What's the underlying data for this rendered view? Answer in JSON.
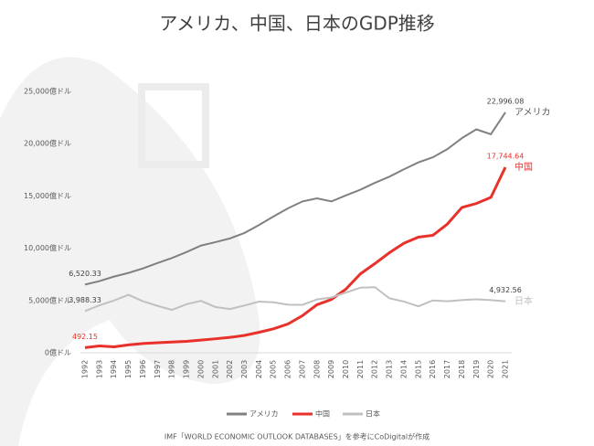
{
  "chart_data": {
    "type": "line",
    "title": "アメリカ、中国、日本のGDP推移",
    "categories": [
      "1992",
      "1993",
      "1994",
      "1995",
      "1996",
      "1997",
      "1998",
      "1999",
      "2000",
      "2001",
      "2002",
      "2003",
      "2004",
      "2005",
      "2006",
      "2007",
      "2008",
      "2009",
      "2010",
      "2011",
      "2012",
      "2013",
      "2014",
      "2015",
      "2016",
      "2017",
      "2018",
      "2019",
      "2020",
      "2021"
    ],
    "series": [
      {
        "name": "アメリカ",
        "color": "#808080",
        "values": [
          6520.33,
          6858,
          7287,
          7639,
          8073,
          8578,
          9063,
          9631,
          10252,
          10582,
          10936,
          11458,
          12214,
          13037,
          13815,
          14475,
          14770,
          14478,
          15049,
          15600,
          16254,
          16843,
          17551,
          18206,
          18695,
          19480,
          20527,
          21373,
          20894,
          22996.08
        ],
        "value_labels": [
          "6,520.33",
          null,
          null,
          null,
          null,
          null,
          null,
          null,
          null,
          null,
          null,
          null,
          null,
          null,
          null,
          null,
          null,
          null,
          null,
          null,
          null,
          null,
          null,
          null,
          null,
          null,
          null,
          null,
          null,
          "22,996.08"
        ]
      },
      {
        "name": "中国",
        "color": "#e8312a",
        "values": [
          492.15,
          650,
          570,
          750,
          880,
          960,
          1029,
          1094,
          1211,
          1339,
          1471,
          1660,
          1955,
          2286,
          2752,
          3550,
          4594,
          5102,
          6087,
          7552,
          8532,
          9570,
          10476,
          11062,
          11233,
          12310,
          13895,
          14280,
          14860,
          17744.64
        ],
        "value_labels": [
          "492.15",
          null,
          null,
          null,
          null,
          null,
          null,
          null,
          null,
          null,
          null,
          null,
          null,
          null,
          null,
          null,
          null,
          null,
          null,
          null,
          null,
          null,
          null,
          null,
          null,
          null,
          null,
          null,
          null,
          "17,744.64"
        ]
      },
      {
        "name": "日本",
        "color": "#c0c0c0",
        "values": [
          3988.33,
          4544,
          4999,
          5545,
          4923,
          4492,
          4098,
          4636,
          4968,
          4374,
          4182,
          4519,
          4893,
          4831,
          4601,
          4579,
          5106,
          5289,
          5759,
          6233,
          6272,
          5212,
          4897,
          4445,
          5004,
          4931,
          5041,
          5118,
          5040,
          4932.56
        ],
        "value_labels": [
          "3,988.33",
          null,
          null,
          null,
          null,
          null,
          null,
          null,
          null,
          null,
          null,
          null,
          null,
          null,
          null,
          null,
          null,
          null,
          null,
          null,
          null,
          null,
          null,
          null,
          null,
          null,
          null,
          null,
          null,
          "4,932.56"
        ]
      }
    ],
    "ylim": [
      0,
      25000
    ],
    "yticks": [
      {
        "value": 0,
        "label": "0億ドル"
      },
      {
        "value": 5000,
        "label": "5,000億ドル"
      },
      {
        "value": 10000,
        "label": "10,000億ドル"
      },
      {
        "value": 15000,
        "label": "15,000億ドル"
      },
      {
        "value": 20000,
        "label": "20,000億ドル"
      },
      {
        "value": 25000,
        "label": "25,000億ドル"
      }
    ],
    "source": "IMF「WORLD ECONOMIC OUTLOOK DATABASES」を参考にCoDigitalが作成"
  }
}
